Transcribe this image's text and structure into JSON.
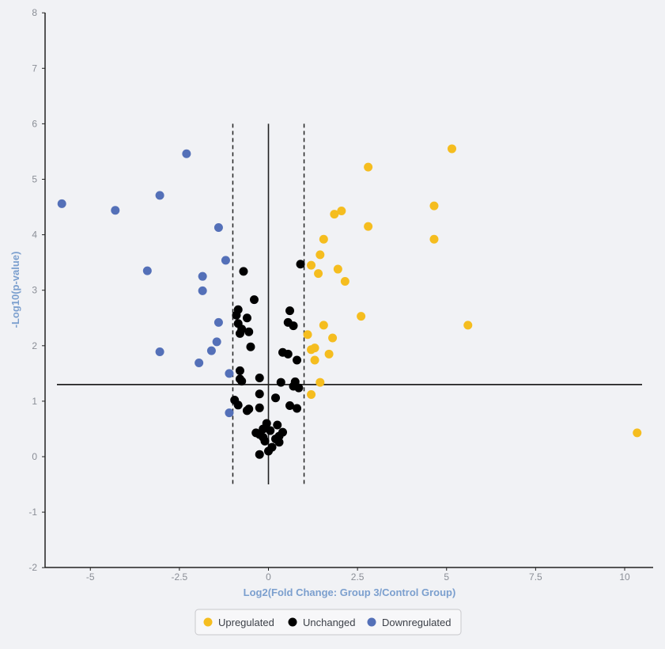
{
  "chart_data": {
    "type": "scatter",
    "title": "",
    "xlabel": "Log2(Fold Change: Group 3/Control Group)",
    "ylabel": "-Log10(p-value)",
    "xlim": [
      -6.3,
      10.5
    ],
    "ylim": [
      -2,
      8
    ],
    "x_ticks": [
      -5,
      -2.5,
      0,
      2.5,
      5,
      7.5,
      10
    ],
    "x_tick_labels": [
      "-5",
      "-2.5",
      "0",
      "2.5",
      "5",
      "7.5",
      "10"
    ],
    "y_ticks": [
      -2,
      -1,
      0,
      1,
      2,
      3,
      4,
      5,
      6,
      7,
      8
    ],
    "y_tick_labels": [
      "-2",
      "-1",
      "0",
      "1",
      "2",
      "3",
      "4",
      "5",
      "6",
      "7",
      "8"
    ],
    "grid": false,
    "legend_position": "bottom-center",
    "reference_lines": {
      "horizontal_y": 1.3,
      "vertical_solid_x": 0,
      "vertical_dashed_x": [
        -1,
        1
      ],
      "vertical_y_range": [
        -0.5,
        6
      ]
    },
    "colors": {
      "Upregulated": "#f5bd1f",
      "Unchanged": "#000000",
      "Downregulated": "#5470b8",
      "axis_title": "#7b9fce",
      "tick_label": "#8a8e96",
      "background": "#f1f2f5"
    },
    "series": [
      {
        "name": "Upregulated",
        "points": [
          [
            5.15,
            5.55
          ],
          [
            2.8,
            5.22
          ],
          [
            2.05,
            4.43
          ],
          [
            1.85,
            4.37
          ],
          [
            4.65,
            4.52
          ],
          [
            2.8,
            4.15
          ],
          [
            4.65,
            3.92
          ],
          [
            1.55,
            3.92
          ],
          [
            1.45,
            3.64
          ],
          [
            1.2,
            3.45
          ],
          [
            1.95,
            3.38
          ],
          [
            1.4,
            3.3
          ],
          [
            2.15,
            3.16
          ],
          [
            2.6,
            2.53
          ],
          [
            5.6,
            2.37
          ],
          [
            1.55,
            2.37
          ],
          [
            1.1,
            2.2
          ],
          [
            1.8,
            2.14
          ],
          [
            1.3,
            1.96
          ],
          [
            1.2,
            1.93
          ],
          [
            1.7,
            1.85
          ],
          [
            1.3,
            1.74
          ],
          [
            1.45,
            1.34
          ],
          [
            1.2,
            1.12
          ],
          [
            10.35,
            0.43
          ]
        ]
      },
      {
        "name": "Unchanged",
        "points": [
          [
            0.9,
            3.47
          ],
          [
            -0.7,
            3.34
          ],
          [
            -0.4,
            2.83
          ],
          [
            0.6,
            2.63
          ],
          [
            -0.85,
            2.65
          ],
          [
            -0.9,
            2.55
          ],
          [
            -0.6,
            2.5
          ],
          [
            -0.85,
            2.4
          ],
          [
            0.55,
            2.42
          ],
          [
            0.7,
            2.36
          ],
          [
            -0.75,
            2.3
          ],
          [
            -0.55,
            2.25
          ],
          [
            -0.8,
            2.22
          ],
          [
            -0.5,
            1.98
          ],
          [
            0.4,
            1.88
          ],
          [
            0.55,
            1.85
          ],
          [
            0.8,
            1.74
          ],
          [
            -0.8,
            1.55
          ],
          [
            -0.25,
            1.42
          ],
          [
            -0.8,
            1.4
          ],
          [
            -0.75,
            1.36
          ],
          [
            0.35,
            1.34
          ],
          [
            0.75,
            1.35
          ],
          [
            0.7,
            1.27
          ],
          [
            0.85,
            1.24
          ],
          [
            -0.25,
            1.13
          ],
          [
            0.2,
            1.06
          ],
          [
            -0.95,
            1.02
          ],
          [
            -0.85,
            0.93
          ],
          [
            0.6,
            0.92
          ],
          [
            -0.25,
            0.88
          ],
          [
            0.8,
            0.87
          ],
          [
            -0.55,
            0.86
          ],
          [
            -0.6,
            0.83
          ],
          [
            -0.05,
            0.6
          ],
          [
            0.25,
            0.57
          ],
          [
            -0.15,
            0.5
          ],
          [
            0.05,
            0.47
          ],
          [
            0.4,
            0.44
          ],
          [
            -0.35,
            0.43
          ],
          [
            -0.25,
            0.4
          ],
          [
            0.3,
            0.37
          ],
          [
            -0.15,
            0.35
          ],
          [
            0.2,
            0.32
          ],
          [
            -0.1,
            0.28
          ],
          [
            0.3,
            0.26
          ],
          [
            0.1,
            0.17
          ],
          [
            0.0,
            0.1
          ],
          [
            -0.25,
            0.04
          ]
        ]
      },
      {
        "name": "Downregulated",
        "points": [
          [
            -2.3,
            5.46
          ],
          [
            -3.05,
            4.71
          ],
          [
            -5.8,
            4.56
          ],
          [
            -4.3,
            4.44
          ],
          [
            -1.4,
            4.13
          ],
          [
            -1.2,
            3.54
          ],
          [
            -3.4,
            3.35
          ],
          [
            -1.85,
            3.25
          ],
          [
            -1.85,
            2.99
          ],
          [
            -1.4,
            2.42
          ],
          [
            -1.45,
            2.07
          ],
          [
            -3.05,
            1.89
          ],
          [
            -1.6,
            1.91
          ],
          [
            -1.95,
            1.69
          ],
          [
            -1.1,
            1.5
          ],
          [
            -1.1,
            0.79
          ]
        ]
      }
    ]
  }
}
